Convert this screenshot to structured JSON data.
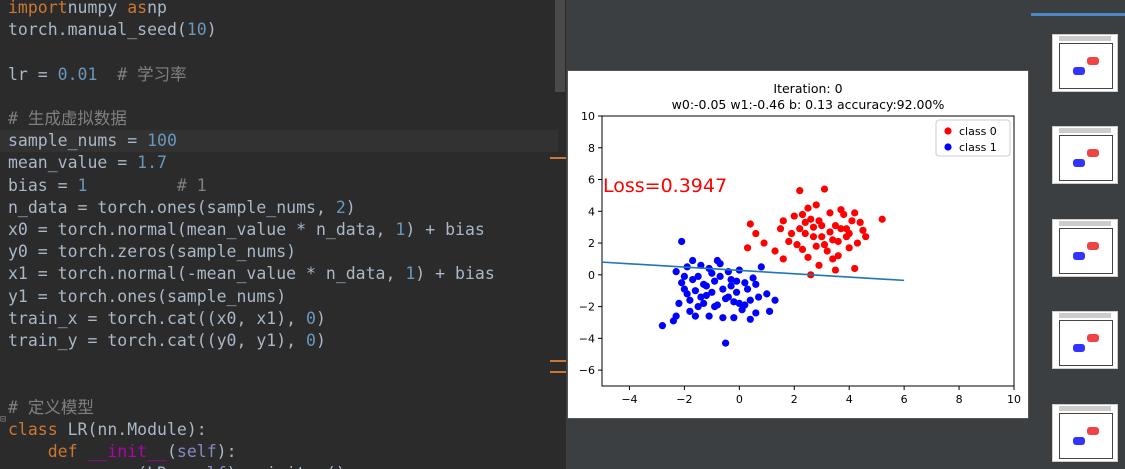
{
  "editor": {
    "lines": [
      {
        "segments": [
          [
            "kw",
            "import"
          ],
          [
            "",
            "numpy "
          ],
          [
            "kw",
            "as"
          ],
          [
            "",
            "np"
          ]
        ]
      },
      {
        "segments": [
          [
            "",
            "torch.manual_seed("
          ],
          [
            "num",
            "10"
          ],
          [
            "",
            ")"
          ]
        ]
      },
      {
        "segments": []
      },
      {
        "segments": [
          [
            "",
            "lr = "
          ],
          [
            "num",
            "0.01"
          ],
          [
            "cmt",
            "  # 学习率"
          ]
        ]
      },
      {
        "segments": []
      },
      {
        "segments": [
          [
            "cmt",
            "# 生成虚拟数据"
          ]
        ]
      },
      {
        "segments": [
          [
            "",
            "sample_nums = "
          ],
          [
            "num",
            "100"
          ]
        ]
      },
      {
        "segments": [
          [
            "",
            "mean_value = "
          ],
          [
            "num",
            "1.7"
          ]
        ]
      },
      {
        "segments": [
          [
            "",
            "bias = "
          ],
          [
            "num",
            "1"
          ],
          [
            "cmt",
            "         # 1"
          ]
        ]
      },
      {
        "segments": [
          [
            "",
            "n_data = torch.ones(sample_nums, "
          ],
          [
            "num",
            "2"
          ],
          [
            "",
            ")"
          ]
        ]
      },
      {
        "segments": [
          [
            "",
            "x0 = torch.normal(mean_value * n_data, "
          ],
          [
            "num",
            "1"
          ],
          [
            "",
            ") + bias"
          ]
        ]
      },
      {
        "segments": [
          [
            "",
            "y0 = torch.zeros(sample_nums)"
          ]
        ]
      },
      {
        "segments": [
          [
            "",
            "x1 = torch.normal(-mean_value * n_data, "
          ],
          [
            "num",
            "1"
          ],
          [
            "",
            ") + bias"
          ]
        ]
      },
      {
        "segments": [
          [
            "",
            "y1 = torch.ones(sample_nums)"
          ]
        ]
      },
      {
        "segments": [
          [
            "",
            "train_x = torch.cat((x0, x1), "
          ],
          [
            "num",
            "0"
          ],
          [
            "",
            ")"
          ]
        ]
      },
      {
        "segments": [
          [
            "",
            "train_y = torch.cat((y0, y1), "
          ],
          [
            "num",
            "0"
          ],
          [
            "",
            ")"
          ]
        ]
      },
      {
        "segments": []
      },
      {
        "segments": []
      },
      {
        "segments": [
          [
            "cmt",
            "# 定义模型"
          ]
        ]
      },
      {
        "segments": [
          [
            "kw",
            "class "
          ],
          [
            "",
            "LR(nn.Module):"
          ]
        ]
      },
      {
        "segments": [
          [
            "",
            "    "
          ],
          [
            "kw",
            "def "
          ],
          [
            "fn",
            "__init__"
          ],
          [
            "",
            "("
          ],
          [
            "builtin",
            "self"
          ],
          [
            "",
            "):"
          ]
        ]
      },
      {
        "segments": [
          [
            "",
            "        super(LR, "
          ],
          [
            "builtin",
            "self"
          ],
          [
            "",
            ").__init__()"
          ]
        ]
      }
    ],
    "highlighted_line": 6
  },
  "plot": {
    "title_line1": "Iteration: 0",
    "title_line2": "w0:-0.05 w1:-0.46 b: 0.13 accuracy:92.00%",
    "loss_text": "Loss=0.3947",
    "legend": [
      {
        "label": "class 0",
        "color": "#ff0000"
      },
      {
        "label": "class 1",
        "color": "#0000ff"
      }
    ],
    "line_color": "#1f77b4"
  },
  "chart_data": {
    "type": "scatter",
    "title": "Iteration: 0\nw0:-0.05 w1:-0.46 b: 0.13 accuracy:92.00%",
    "xlim": [
      -5,
      10
    ],
    "ylim": [
      -7,
      10
    ],
    "xticks": [
      -4,
      -2,
      0,
      2,
      4,
      6,
      8,
      10
    ],
    "yticks": [
      -6,
      -4,
      -2,
      0,
      2,
      4,
      6,
      8,
      10
    ],
    "legend_position": "top-right",
    "series": [
      {
        "name": "class 0",
        "color": "#ff0000",
        "points": [
          [
            0.4,
            3.2
          ],
          [
            0.6,
            2.6
          ],
          [
            0.3,
            1.7
          ],
          [
            0.9,
            2.0
          ],
          [
            1.3,
            1.5
          ],
          [
            1.6,
            1.0
          ],
          [
            2.2,
            5.3
          ],
          [
            2.4,
            2.6
          ],
          [
            2.5,
            4.2
          ],
          [
            2.7,
            3.0
          ],
          [
            1.9,
            2.6
          ],
          [
            2.1,
            1.9
          ],
          [
            2.3,
            1.6
          ],
          [
            2.5,
            1.1
          ],
          [
            2.8,
            1.8
          ],
          [
            3.0,
            2.4
          ],
          [
            3.1,
            5.4
          ],
          [
            3.3,
            3.9
          ],
          [
            3.5,
            3.1
          ],
          [
            3.7,
            2.9
          ],
          [
            3.9,
            2.4
          ],
          [
            4.1,
            3.4
          ],
          [
            4.3,
            2.0
          ],
          [
            4.5,
            2.8
          ],
          [
            2.0,
            3.7
          ],
          [
            2.6,
            3.5
          ],
          [
            2.9,
            0.6
          ],
          [
            3.2,
            1.5
          ],
          [
            3.4,
            2.2
          ],
          [
            3.6,
            1.2
          ],
          [
            3.8,
            3.8
          ],
          [
            4.0,
            1.7
          ],
          [
            4.2,
            0.4
          ],
          [
            4.4,
            3.3
          ],
          [
            5.2,
            3.5
          ],
          [
            2.4,
            3.3
          ],
          [
            2.7,
            2.4
          ],
          [
            3.0,
            3.1
          ],
          [
            3.3,
            2.7
          ],
          [
            3.6,
            2.1
          ],
          [
            3.9,
            2.9
          ],
          [
            2.2,
            2.9
          ],
          [
            3.1,
            1.9
          ],
          [
            4.0,
            2.6
          ],
          [
            4.6,
            2.4
          ],
          [
            1.5,
            2.9
          ],
          [
            3.5,
            0.3
          ],
          [
            2.8,
            4.4
          ],
          [
            2.6,
            0.0
          ],
          [
            3.4,
            1.0
          ],
          [
            1.8,
            2.1
          ],
          [
            2.3,
            3.8
          ],
          [
            3.7,
            4.1
          ],
          [
            4.2,
            3.9
          ],
          [
            2.9,
            3.4
          ],
          [
            1.6,
            3.4
          ]
        ]
      },
      {
        "name": "class 1",
        "color": "#0000ff",
        "points": [
          [
            -2.8,
            -3.2
          ],
          [
            -2.4,
            -2.9
          ],
          [
            -2.3,
            -2.6
          ],
          [
            -2.1,
            2.1
          ],
          [
            -2.0,
            -0.1
          ],
          [
            -1.9,
            0.5
          ],
          [
            -1.8,
            -1.6
          ],
          [
            -1.7,
            -0.3
          ],
          [
            -1.6,
            -1.0
          ],
          [
            -1.5,
            -2.0
          ],
          [
            -1.4,
            0.6
          ],
          [
            -1.3,
            -0.6
          ],
          [
            -1.2,
            -1.3
          ],
          [
            -1.1,
            -2.6
          ],
          [
            -1.0,
            0.1
          ],
          [
            -0.9,
            -0.4
          ],
          [
            -0.8,
            -1.9
          ],
          [
            -0.7,
            0.7
          ],
          [
            -0.6,
            -0.9
          ],
          [
            -0.5,
            -1.5
          ],
          [
            -0.5,
            -4.3
          ],
          [
            -0.4,
            0.2
          ],
          [
            -0.3,
            -0.7
          ],
          [
            -0.2,
            -2.7
          ],
          [
            -0.1,
            -1.1
          ],
          [
            0.0,
            0.3
          ],
          [
            0.1,
            -2.2
          ],
          [
            0.2,
            -0.5
          ],
          [
            0.4,
            -1.6
          ],
          [
            0.5,
            -0.2
          ],
          [
            0.6,
            -2.4
          ],
          [
            0.8,
            0.5
          ],
          [
            1.0,
            -1.2
          ],
          [
            1.1,
            -2.3
          ],
          [
            1.3,
            -1.6
          ],
          [
            -2.2,
            -1.8
          ],
          [
            -2.0,
            -0.9
          ],
          [
            -1.8,
            -2.3
          ],
          [
            -1.5,
            -0.1
          ],
          [
            -1.3,
            -1.8
          ],
          [
            -1.0,
            -1.1
          ],
          [
            -0.8,
            0.9
          ],
          [
            -0.6,
            -2.7
          ],
          [
            -0.3,
            -0.3
          ],
          [
            0.0,
            -1.8
          ],
          [
            0.3,
            -0.9
          ],
          [
            0.7,
            -1.4
          ],
          [
            -2.3,
            0.2
          ],
          [
            -1.9,
            -1.2
          ],
          [
            -1.6,
            -2.6
          ],
          [
            -1.2,
            -0.7
          ],
          [
            -0.9,
            -2.0
          ],
          [
            -0.4,
            -1.4
          ],
          [
            -0.1,
            -0.4
          ],
          [
            0.2,
            -1.9
          ],
          [
            0.6,
            -0.6
          ],
          [
            -1.7,
            0.9
          ],
          [
            -1.4,
            -1.4
          ],
          [
            -0.7,
            -0.1
          ],
          [
            0.4,
            -2.8
          ],
          [
            -2.1,
            -0.5
          ],
          [
            -1.1,
            0.4
          ],
          [
            -0.2,
            -1.7
          ]
        ]
      }
    ],
    "line": {
      "name": "decision line",
      "x": [
        -5,
        6
      ],
      "y": [
        0.8,
        -0.35
      ]
    }
  }
}
